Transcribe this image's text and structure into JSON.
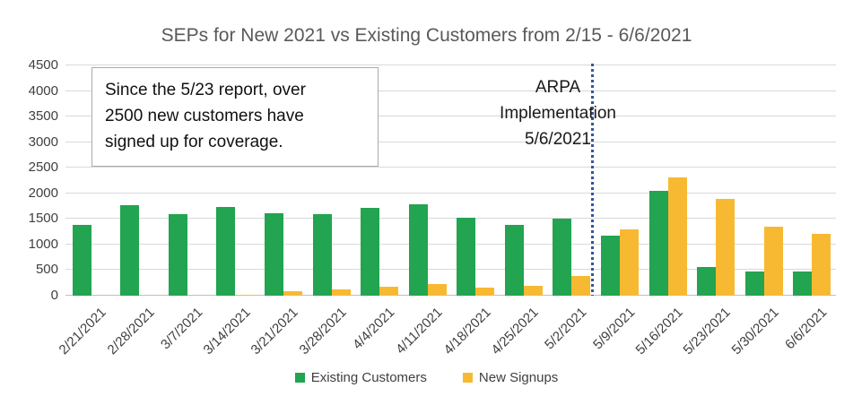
{
  "chart_data": {
    "type": "bar",
    "title": "SEPs for New 2021 vs Existing Customers from 2/15 - 6/6/2021",
    "categories": [
      "2/21/2021",
      "2/28/2021",
      "3/7/2021",
      "3/14/2021",
      "3/21/2021",
      "3/28/2021",
      "4/4/2021",
      "4/11/2021",
      "4/18/2021",
      "4/25/2021",
      "5/2/2021",
      "5/9/2021",
      "5/16/2021",
      "5/23/2021",
      "5/30/2021",
      "6/6/2021"
    ],
    "series": [
      {
        "name": "Existing Customers",
        "color": "#22A450",
        "values": [
          1380,
          1770,
          1600,
          1740,
          1610,
          1600,
          1710,
          1790,
          1530,
          1380,
          1510,
          1180,
          2050,
          560,
          470,
          480
        ]
      },
      {
        "name": "New Signups",
        "color": "#F8B932",
        "values": [
          0,
          0,
          0,
          20,
          90,
          130,
          170,
          230,
          150,
          190,
          380,
          1290,
          2310,
          1900,
          1350,
          1210
        ]
      }
    ],
    "ylim": [
      0,
      4500
    ],
    "yticks": [
      0,
      500,
      1000,
      1500,
      2000,
      2500,
      3000,
      3500,
      4000,
      4500
    ],
    "grid": true,
    "legend_position": "bottom",
    "annotations": {
      "note_box_lines": [
        "Since the 5/23 report, over",
        "2500 new customers have",
        "signed up for coverage."
      ],
      "vline_label_lines": [
        "ARPA",
        "Implementation",
        "5/6/2021"
      ],
      "vline_after_category": "5/2/2021",
      "vline_color": "#33569B"
    },
    "colors": {
      "gridline": "#D9D9D9",
      "axis_line": "#BFBFBF",
      "title_text": "#595959",
      "tick_text": "#404040"
    }
  }
}
